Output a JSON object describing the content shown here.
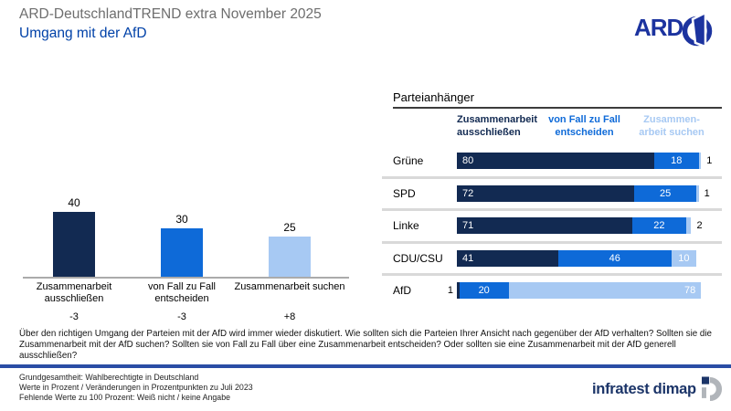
{
  "header": {
    "title": "ARD-DeutschlandTREND extra November 2025",
    "subtitle": "Umgang mit der AfD",
    "ard_logo_text": "ARD"
  },
  "colors": {
    "dark_blue": "#122a52",
    "medium_blue": "#0e6ad8",
    "light_blue": "#a7c9f3",
    "title_gray": "#6e6e6e",
    "subtitle_blue": "#0041a8",
    "ard_blue": "#1c339f",
    "divider_blue": "#2a4da5",
    "brand_blue": "#1b3468",
    "separator_gray": "#d9d9d9"
  },
  "chart_data": [
    {
      "type": "bar",
      "title": "",
      "categories": [
        "Zusammenarbeit ausschließen",
        "von Fall zu Fall entscheiden",
        "Zusammenarbeit suchen"
      ],
      "values": [
        40,
        30,
        25
      ],
      "changes": [
        "-3",
        "-3",
        "+8"
      ],
      "bar_colors": [
        "#122a52",
        "#0e6ad8",
        "#a7c9f3"
      ],
      "ylim": [
        0,
        45
      ],
      "grid": false
    },
    {
      "type": "bar-horizontal-stacked",
      "title": "Parteianhänger",
      "categories": [
        "Grüne",
        "SPD",
        "Linke",
        "CDU/CSU",
        "AfD"
      ],
      "series": [
        {
          "name": "Zusammenarbeit ausschließen",
          "color": "#122a52",
          "values": [
            80,
            72,
            71,
            41,
            1
          ]
        },
        {
          "name": "von Fall zu Fall entscheiden",
          "color": "#0e6ad8",
          "values": [
            18,
            25,
            22,
            46,
            20
          ]
        },
        {
          "name": "Zusammenarbeit suchen",
          "color": "#a7c9f3",
          "values": [
            1,
            1,
            2,
            10,
            78
          ]
        }
      ],
      "column_headers": [
        "Zusammenarbeit\nausschließen",
        "von Fall zu Fall\nentscheiden",
        "Zusammen-\narbeit suchen"
      ],
      "xlim": [
        0,
        100
      ],
      "legend_position": "top"
    }
  ],
  "question": "Über den richtigen Umgang der Parteien mit der AfD wird immer wieder diskutiert. Wie sollten sich die Parteien Ihrer Ansicht nach gegenüber der AfD verhalten? Sollten sie die Zusammenarbeit mit der AfD suchen? Sollten sie von Fall zu Fall über eine Zusammenarbeit entscheiden? Oder sollten sie eine Zusammenarbeit mit der AfD generell ausschließen?",
  "footer": {
    "lines": [
      "Grundgesamtheit: Wahlberechtigte in Deutschland",
      "Werte in Prozent / Veränderungen in Prozentpunkten zu Juli 2023",
      "Fehlende Werte zu 100 Prozent: Weiß nicht / keine Angabe"
    ],
    "brand": "infratest dimap"
  }
}
